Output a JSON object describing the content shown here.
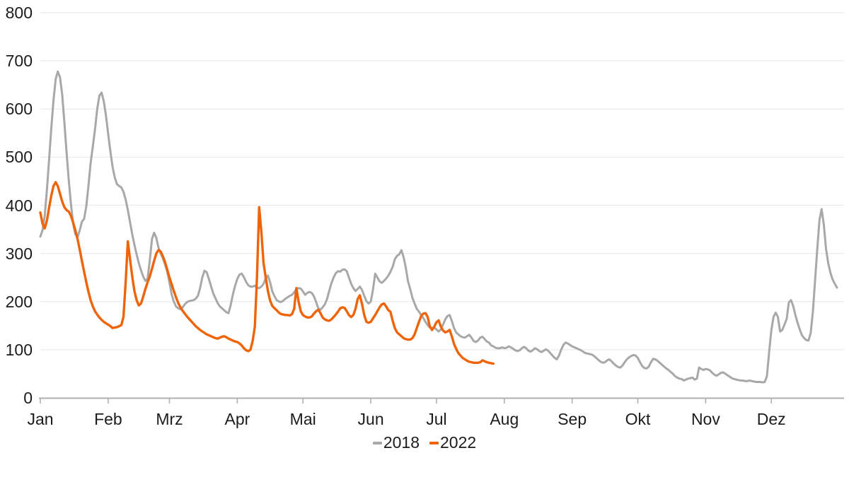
{
  "chart_data": {
    "type": "line",
    "title": "",
    "xlabel": "",
    "ylabel": "",
    "grid": "horizontal",
    "legend_position": "bottom-center",
    "x_axis": {
      "unit": "day_of_year",
      "range_days": [
        1,
        365
      ],
      "tick_labels": [
        "Jan",
        "Feb",
        "Mrz",
        "Apr",
        "Mai",
        "Jun",
        "Jul",
        "Aug",
        "Sep",
        "Okt",
        "Nov",
        "Dez"
      ],
      "month_start_days": [
        1,
        32,
        60,
        91,
        121,
        152,
        182,
        213,
        244,
        274,
        305,
        335
      ]
    },
    "y_axis": {
      "min": 0,
      "max": 800,
      "tick_step": 100,
      "tick_labels": [
        "0",
        "100",
        "200",
        "300",
        "400",
        "500",
        "600",
        "700",
        "800"
      ]
    },
    "colors": {
      "series_2018": "#a8a8a8",
      "series_2022": "#ef6408",
      "axis": "#b0b0b0",
      "grid": "#ebebeb",
      "text": "#1c1c1c"
    },
    "series": [
      {
        "name": "2018",
        "color": "#a8a8a8",
        "start_day": 1,
        "values": [
          335,
          348,
          378,
          432,
          495,
          560,
          618,
          662,
          678,
          666,
          630,
          572,
          510,
          452,
          402,
          362,
          340,
          334,
          348,
          366,
          372,
          398,
          442,
          488,
          522,
          558,
          600,
          628,
          634,
          616,
          586,
          548,
          512,
          480,
          458,
          444,
          440,
          437,
          428,
          412,
          390,
          365,
          340,
          318,
          298,
          280,
          265,
          252,
          243,
          248,
          285,
          330,
          343,
          332,
          312,
          300,
          290,
          277,
          262,
          240,
          215,
          200,
          190,
          186,
          184,
          188,
          194,
          199,
          201,
          202,
          203,
          206,
          212,
          228,
          250,
          264,
          261,
          247,
          232,
          217,
          207,
          197,
          190,
          186,
          182,
          178,
          176,
          193,
          215,
          233,
          247,
          256,
          258,
          251,
          241,
          234,
          231,
          231,
          233,
          229,
          228,
          231,
          237,
          249,
          254,
          240,
          221,
          211,
          203,
          200,
          199,
          202,
          206,
          209,
          212,
          214,
          219,
          226,
          228,
          227,
          221,
          214,
          218,
          220,
          218,
          211,
          199,
          186,
          183,
          188,
          194,
          205,
          222,
          238,
          250,
          259,
          263,
          262,
          266,
          267,
          263,
          250,
          237,
          228,
          222,
          226,
          231,
          224,
          212,
          201,
          196,
          200,
          225,
          258,
          250,
          242,
          239,
          243,
          248,
          254,
          262,
          272,
          288,
          295,
          298,
          307,
          292,
          270,
          242,
          226,
          208,
          196,
          185,
          179,
          172,
          166,
          158,
          151,
          146,
          145,
          146,
          142,
          138,
          142,
          152,
          163,
          170,
          172,
          160,
          145,
          136,
          132,
          128,
          126,
          125,
          128,
          131,
          125,
          118,
          116,
          119,
          125,
          127,
          122,
          117,
          115,
          109,
          107,
          104,
          103,
          103,
          105,
          103,
          104,
          107,
          105,
          102,
          99,
          97,
          99,
          103,
          106,
          103,
          98,
          96,
          99,
          103,
          101,
          97,
          95,
          98,
          101,
          98,
          93,
          88,
          83,
          80,
          88,
          100,
          110,
          115,
          113,
          110,
          107,
          105,
          103,
          101,
          99,
          96,
          93,
          92,
          91,
          90,
          87,
          83,
          79,
          75,
          73,
          74,
          78,
          80,
          76,
          71,
          67,
          64,
          63,
          67,
          74,
          80,
          84,
          87,
          89,
          88,
          83,
          74,
          66,
          62,
          61,
          65,
          74,
          81,
          80,
          77,
          73,
          69,
          65,
          61,
          58,
          54,
          50,
          45,
          42,
          40,
          39,
          36,
          38,
          40,
          41,
          42,
          38,
          40,
          63,
          60,
          58,
          60,
          59,
          57,
          52,
          48,
          46,
          49,
          52,
          53,
          50,
          47,
          44,
          41,
          39,
          38,
          37,
          36,
          36,
          35,
          35,
          36,
          35,
          34,
          33,
          33,
          33,
          32,
          33,
          45,
          95,
          140,
          168,
          177,
          168,
          138,
          141,
          152,
          164,
          198,
          203,
          191,
          172,
          156,
          142,
          130,
          124,
          120,
          119,
          135,
          180,
          245,
          310,
          370,
          392,
          360,
          310,
          280,
          260,
          246,
          237,
          229
        ]
      },
      {
        "name": "2022",
        "color": "#ef6408",
        "start_day": 1,
        "values": [
          385,
          362,
          352,
          368,
          395,
          420,
          440,
          448,
          440,
          424,
          408,
          396,
          390,
          387,
          378,
          364,
          348,
          330,
          308,
          284,
          262,
          240,
          220,
          203,
          190,
          180,
          173,
          167,
          162,
          158,
          155,
          152,
          149,
          145,
          146,
          147,
          149,
          151,
          168,
          240,
          325,
          288,
          252,
          222,
          203,
          192,
          196,
          210,
          226,
          240,
          252,
          268,
          285,
          300,
          307,
          304,
          294,
          282,
          266,
          250,
          236,
          222,
          209,
          197,
          188,
          181,
          175,
          169,
          164,
          159,
          154,
          149,
          145,
          141,
          138,
          135,
          132,
          130,
          128,
          126,
          124,
          123,
          125,
          127,
          128,
          126,
          123,
          121,
          119,
          117,
          116,
          113,
          109,
          103,
          99,
          97,
          100,
          118,
          148,
          250,
          396,
          345,
          280,
          250,
          222,
          202,
          191,
          186,
          182,
          177,
          174,
          173,
          172,
          172,
          171,
          174,
          185,
          228,
          200,
          180,
          172,
          169,
          167,
          167,
          169,
          175,
          180,
          183,
          176,
          167,
          163,
          161,
          160,
          163,
          168,
          173,
          179,
          186,
          188,
          187,
          180,
          172,
          168,
          172,
          185,
          205,
          213,
          195,
          172,
          158,
          156,
          158,
          165,
          172,
          180,
          188,
          194,
          196,
          190,
          182,
          179,
          160,
          145,
          136,
          132,
          128,
          124,
          122,
          121,
          121,
          124,
          132,
          145,
          158,
          170,
          175,
          176,
          168,
          148,
          141,
          148,
          157,
          161,
          148,
          140,
          136,
          138,
          141,
          128,
          112,
          102,
          93,
          88,
          83,
          80,
          77,
          75,
          74,
          73,
          73,
          73,
          74,
          78,
          76,
          74,
          73,
          72,
          71
        ]
      }
    ]
  },
  "legend": {
    "items": [
      {
        "label": "2018",
        "color": "#a8a8a8"
      },
      {
        "label": "2022",
        "color": "#ef6408"
      }
    ]
  }
}
